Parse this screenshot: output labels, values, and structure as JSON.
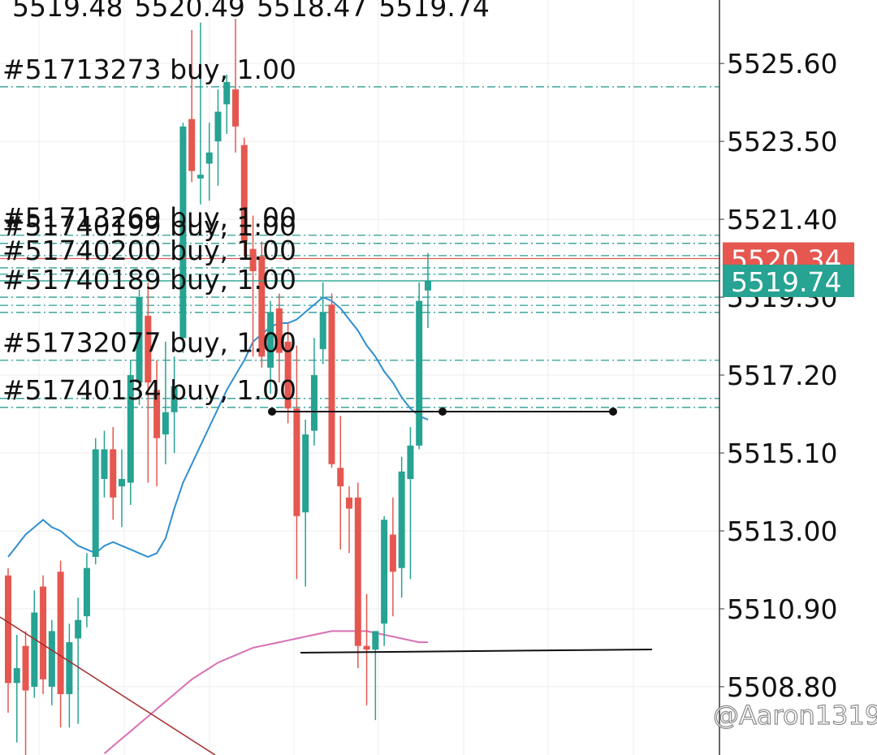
{
  "chart_data": {
    "type": "candlestick",
    "open": [
      5511.8,
      5508.9,
      5509.9,
      5508.8,
      5511.5,
      5508.8,
      5511.9,
      5508.6,
      5510.1,
      5510.7,
      5512.3,
      5514.4,
      5515.2,
      5514.2,
      5514.3,
      5517.0,
      5518.8,
      5516.8,
      5515.6,
      5516.2,
      5518.2,
      5524.1,
      5522.5,
      5522.9,
      5523.5,
      5524.5,
      5524.9,
      5523.4,
      5520.6,
      5520.4,
      5517.4,
      5519.0,
      5518.1,
      5516.3,
      5513.5,
      5515.7,
      5517.9,
      5519.1,
      5514.7,
      5513.9,
      5513.9,
      5509.9,
      5509.8,
      5510.5,
      5512.9,
      5512.0,
      5514.4,
      5515.3,
      5519.48
    ],
    "high": [
      5512.0,
      5510.2,
      5510.3,
      5511.4,
      5511.8,
      5510.6,
      5512.2,
      5510.5,
      5511.2,
      5512.4,
      5515.5,
      5515.7,
      5515.8,
      5515.2,
      5517.6,
      5519.5,
      5519.7,
      5517.6,
      5518.1,
      5517.7,
      5524.0,
      5526.5,
      5526.7,
      5524.0,
      5524.9,
      5525.3,
      5526.8,
      5523.6,
      5521.5,
      5520.8,
      5519.2,
      5519.4,
      5518.6,
      5518.0,
      5516.0,
      5518.2,
      5519.7,
      5519.4,
      5516.1,
      5514.2,
      5514.3,
      5511.3,
      5510.3,
      5513.4,
      5513.9,
      5515.0,
      5515.8,
      5519.7,
      5520.49
    ],
    "low": [
      5508.1,
      5507.3,
      5506.9,
      5508.5,
      5508.6,
      5508.3,
      5507.7,
      5507.7,
      5507.8,
      5510.4,
      5512.1,
      5513.9,
      5513.3,
      5513.1,
      5513.7,
      5516.4,
      5514.3,
      5514.2,
      5514.8,
      5515.1,
      5517.8,
      5522.4,
      5521.8,
      5521.9,
      5522.3,
      5523.7,
      5523.2,
      5520.4,
      5517.7,
      5517.4,
      5516.7,
      5517.0,
      5515.9,
      5511.7,
      5511.5,
      5515.3,
      5517.5,
      5514.7,
      5512.5,
      5512.4,
      5509.3,
      5508.3,
      5507.9,
      5509.9,
      5510.7,
      5511.2,
      5511.7,
      5515.2,
      5518.47
    ],
    "close": [
      5508.9,
      5509.3,
      5508.7,
      5510.8,
      5509.0,
      5510.3,
      5508.6,
      5510.0,
      5510.6,
      5512.0,
      5515.2,
      5515.2,
      5513.9,
      5514.4,
      5517.2,
      5519.3,
      5517.0,
      5515.5,
      5516.2,
      5516.9,
      5523.9,
      5522.7,
      5522.6,
      5523.2,
      5524.3,
      5525.1,
      5523.9,
      5520.8,
      5520.0,
      5517.7,
      5518.9,
      5517.8,
      5516.3,
      5513.4,
      5515.6,
      5517.2,
      5518.9,
      5514.8,
      5514.2,
      5513.6,
      5509.9,
      5509.8,
      5510.3,
      5513.3,
      5511.9,
      5514.6,
      5515.3,
      5519.2,
      5519.74
    ],
    "up_color": "#26a392",
    "down_color": "#e5574f",
    "moving_averages": [
      {
        "color": "#2f8fd0",
        "values": [
          5512.3,
          5512.6,
          5512.9,
          5513.1,
          5513.3,
          5513.1,
          5513.0,
          5512.8,
          5512.6,
          5512.5,
          5512.4,
          5512.6,
          5512.7,
          5512.6,
          5512.5,
          5512.4,
          5512.3,
          5512.4,
          5512.8,
          5513.6,
          5514.3,
          5514.8,
          5515.3,
          5515.8,
          5516.3,
          5516.8,
          5517.2,
          5517.6,
          5518.1,
          5518.3,
          5518.5,
          5518.6,
          5518.6,
          5518.7,
          5518.9,
          5519.1,
          5519.3,
          5519.2,
          5519.0,
          5518.7,
          5518.4,
          5518.0,
          5517.7,
          5517.3,
          5517.0,
          5516.6,
          5516.3,
          5516.1,
          5516.0
        ]
      },
      {
        "color": "#d96fb4",
        "values": [
          null,
          null,
          null,
          null,
          null,
          null,
          null,
          null,
          null,
          null,
          null,
          5507.0,
          5507.2,
          5507.4,
          5507.6,
          5507.8,
          5508.0,
          5508.2,
          5508.4,
          5508.6,
          5508.8,
          5509.0,
          5509.15,
          5509.3,
          5509.45,
          5509.55,
          5509.65,
          5509.75,
          5509.85,
          5509.9,
          5509.95,
          5510.0,
          5510.05,
          5510.1,
          5510.15,
          5510.2,
          5510.25,
          5510.3,
          5510.3,
          5510.3,
          5510.3,
          5510.3,
          5510.25,
          5510.2,
          5510.15,
          5510.1,
          5510.05,
          5510.0,
          5510.0
        ]
      }
    ],
    "orders": [
      {
        "label": "#51713273 buy, 1.00",
        "price": 5524.97
      },
      {
        "label": "#51713269 buy, 1.00",
        "price": 5520.97
      },
      {
        "label": "#51740199 buy, 1.00",
        "price": 5520.75
      },
      {
        "label": "#51740200 buy, 1.00",
        "price": 5520.09
      },
      {
        "label": "#51740189 buy, 1.00",
        "price": 5519.3
      },
      {
        "label": "#51732077 buy, 1.00",
        "price": 5517.6
      },
      {
        "label": "#51740134 buy, 1.00",
        "price": 5516.33
      }
    ],
    "order_color": "#2a9d95",
    "extra_levels": [
      5520.42,
      5519.92,
      5519.08,
      5518.89,
      5516.57
    ],
    "ask_price": 5520.34,
    "ask_color": "#e5574f",
    "bid_color": "#26a392",
    "ylim": [
      5506.96,
      5527.31
    ],
    "yticks": [
      {
        "value": 5525.6,
        "label": "5525.60"
      },
      {
        "value": 5523.5,
        "label": "5523.50"
      },
      {
        "value": 5521.4,
        "label": "5521.40"
      },
      {
        "value": 5519.3,
        "label": "5519.30"
      },
      {
        "value": 5517.2,
        "label": "5517.20"
      },
      {
        "value": 5515.1,
        "label": "5515.10"
      },
      {
        "value": 5513.0,
        "label": "5513.00"
      },
      {
        "value": 5510.9,
        "label": "5510.90"
      },
      {
        "value": 5508.8,
        "label": "5508.80"
      }
    ],
    "grid": true,
    "watermark": "@Aaron1319"
  }
}
